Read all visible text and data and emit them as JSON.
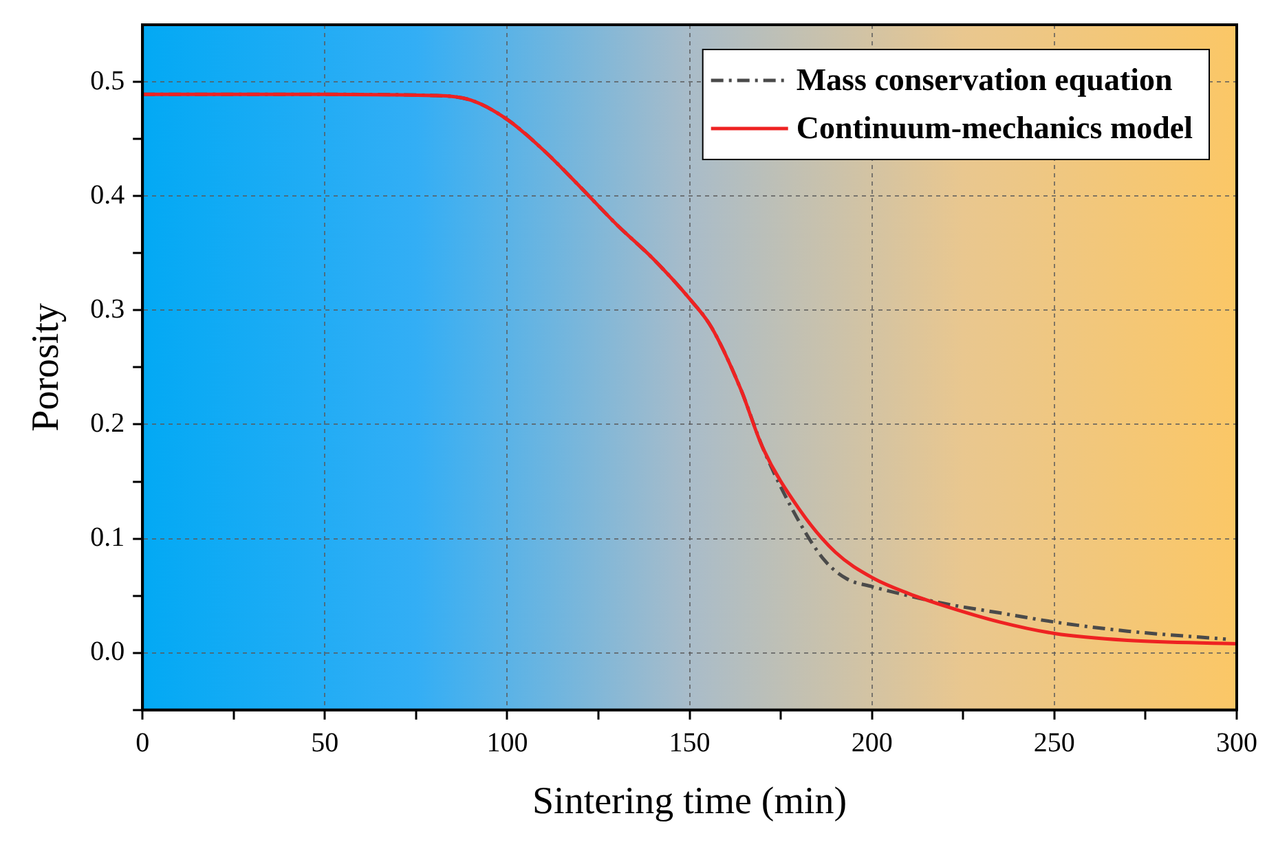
{
  "chart_data": {
    "type": "line",
    "xlabel": "Sintering time (min)",
    "ylabel": "Porosity",
    "xlim": [
      0,
      300
    ],
    "xticks": [
      0,
      {
        "value": 25,
        "label": null
      },
      50,
      {
        "value": 75,
        "label": null
      },
      100,
      {
        "value": 125,
        "label": null
      },
      150,
      {
        "value": 175,
        "label": null
      },
      200,
      {
        "value": 225,
        "label": null
      },
      250,
      {
        "value": 275,
        "label": null
      },
      300
    ],
    "ylim": [
      -0.05,
      0.55
    ],
    "yticks": [
      {
        "value": -0.05,
        "label": null
      },
      {
        "value": 0,
        "label": "0.0"
      },
      {
        "value": 0.05,
        "label": null
      },
      0.1,
      {
        "value": 0.15,
        "label": null
      },
      0.2,
      {
        "value": 0.25,
        "label": null
      },
      0.3,
      {
        "value": 0.35,
        "label": null
      },
      0.4,
      {
        "value": 0.45,
        "label": null
      },
      0.5
    ],
    "grid": true,
    "legend": "top right",
    "marker": "none",
    "series": [
      {
        "name": "Mass conservation equation",
        "color": "#4a4a4a",
        "line_style": "dashdot",
        "x": [
          0,
          50,
          80,
          90,
          100,
          110,
          120,
          130,
          140,
          150,
          156,
          164,
          170,
          180,
          187,
          193,
          200,
          210,
          220,
          235,
          250,
          270,
          297
        ],
        "values": [
          0.489,
          0.489,
          0.488,
          0.484,
          0.467,
          0.44,
          0.408,
          0.375,
          0.345,
          0.31,
          0.285,
          0.231,
          0.18,
          0.115,
          0.081,
          0.065,
          0.058,
          0.05,
          0.043,
          0.035,
          0.027,
          0.019,
          0.012
        ]
      },
      {
        "name": "Continuum-mechanics model",
        "color": "#ee2222",
        "line_style": "solid",
        "x": [
          0,
          50,
          80,
          90,
          100,
          110,
          120,
          130,
          140,
          150,
          156,
          164,
          170,
          180,
          190,
          200,
          210,
          220,
          235,
          250,
          270,
          300
        ],
        "values": [
          0.489,
          0.489,
          0.488,
          0.484,
          0.467,
          0.44,
          0.408,
          0.375,
          0.345,
          0.31,
          0.285,
          0.231,
          0.18,
          0.126,
          0.088,
          0.066,
          0.052,
          0.041,
          0.027,
          0.017,
          0.011,
          0.008
        ]
      }
    ]
  }
}
